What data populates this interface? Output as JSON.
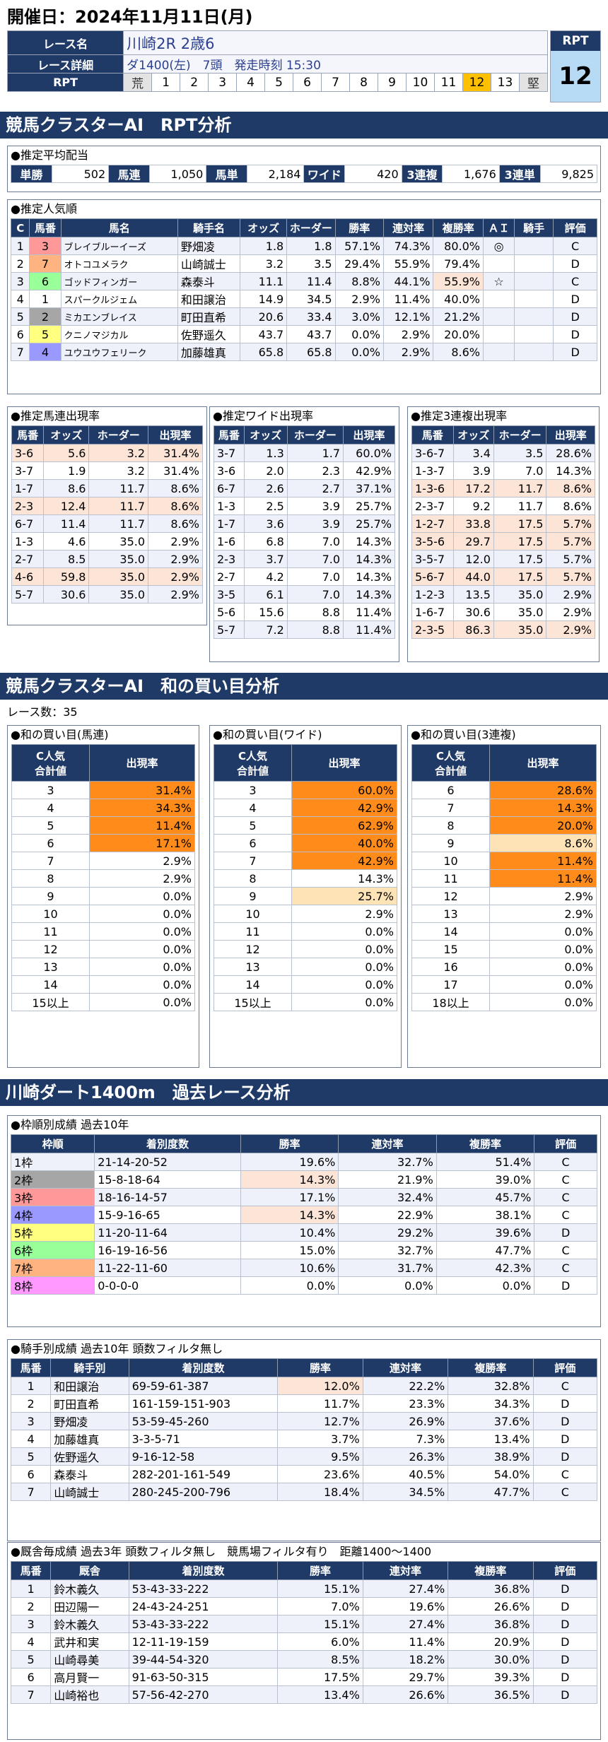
{
  "date_line": "開催日：2024年11月11日(月)",
  "header": {
    "race_name_label": "レース名",
    "race_name": "川崎2R 2歳6",
    "detail_label": "レース詳細",
    "detail": "ダ1400(左)　7頭　発走時刻 15:30",
    "rpt_label": "RPT",
    "rpt_scale": [
      "荒",
      "1",
      "2",
      "3",
      "4",
      "5",
      "6",
      "7",
      "8",
      "9",
      "10",
      "11",
      "12",
      "13",
      "堅"
    ],
    "rpt_selected": "12",
    "rpt_box_label": "RPT",
    "rpt_value": "12"
  },
  "band1": "競馬クラスターAI　RPT分析",
  "payout": {
    "title": "●推定平均配当",
    "items": [
      {
        "k": "単勝",
        "v": "502"
      },
      {
        "k": "馬連",
        "v": "1,050"
      },
      {
        "k": "馬単",
        "v": "2,184"
      },
      {
        "k": "ワイド",
        "v": "420"
      },
      {
        "k": "3連複",
        "v": "1,676"
      },
      {
        "k": "3連単",
        "v": "9,825"
      }
    ]
  },
  "pop": {
    "title": "●推定人気順",
    "headers": [
      "C",
      "馬番",
      "馬名",
      "騎手名",
      "オッズ",
      "ホーダー",
      "勝率",
      "連対率",
      "複勝率",
      "ＡＩ",
      "騎手",
      "評価"
    ],
    "rows": [
      [
        "1",
        "3",
        "ブレイブルーイーズ",
        "野畑凌",
        "1.8",
        "1.8",
        "57.1%",
        "74.3%",
        "80.0%",
        "◎",
        "",
        "C"
      ],
      [
        "2",
        "7",
        "オトコユメラク",
        "山崎誠士",
        "3.2",
        "3.5",
        "29.4%",
        "55.9%",
        "79.4%",
        "",
        "",
        "D"
      ],
      [
        "3",
        "6",
        "ゴッドフィンガー",
        "森泰斗",
        "11.1",
        "11.4",
        "8.8%",
        "44.1%",
        "55.9%",
        "☆",
        "",
        "C"
      ],
      [
        "4",
        "1",
        "スパークルジェム",
        "和田譲治",
        "14.9",
        "34.5",
        "2.9%",
        "11.4%",
        "40.0%",
        "",
        "",
        "D"
      ],
      [
        "5",
        "2",
        "ミカエンブレイス",
        "町田直希",
        "20.6",
        "33.4",
        "3.0%",
        "12.1%",
        "21.2%",
        "",
        "",
        "D"
      ],
      [
        "6",
        "5",
        "クニノマジカル",
        "佐野遥久",
        "43.7",
        "43.7",
        "0.0%",
        "2.9%",
        "20.0%",
        "",
        "",
        "D"
      ],
      [
        "7",
        "4",
        "ユウユウフェリーク",
        "加藤雄真",
        "65.8",
        "65.8",
        "0.0%",
        "2.9%",
        "8.6%",
        "",
        "",
        "D"
      ]
    ]
  },
  "quin": {
    "title": "●推定馬連出現率",
    "headers": [
      "馬番",
      "オッズ",
      "ホーダー",
      "出現率"
    ],
    "rows": [
      [
        "3-6",
        "5.6",
        "3.2",
        "31.4%"
      ],
      [
        "3-7",
        "1.9",
        "3.2",
        "31.4%"
      ],
      [
        "1-7",
        "8.6",
        "11.7",
        "8.6%"
      ],
      [
        "2-3",
        "12.4",
        "11.7",
        "8.6%"
      ],
      [
        "6-7",
        "11.4",
        "11.7",
        "8.6%"
      ],
      [
        "1-3",
        "4.6",
        "35.0",
        "2.9%"
      ],
      [
        "2-7",
        "8.5",
        "35.0",
        "2.9%"
      ],
      [
        "4-6",
        "59.8",
        "35.0",
        "2.9%"
      ],
      [
        "5-7",
        "30.6",
        "35.0",
        "2.9%"
      ]
    ]
  },
  "wide": {
    "title": "●推定ワイド出現率",
    "headers": [
      "馬番",
      "オッズ",
      "ホーダー",
      "出現率"
    ],
    "rows": [
      [
        "3-7",
        "1.3",
        "1.7",
        "60.0%"
      ],
      [
        "3-6",
        "2.0",
        "2.3",
        "42.9%"
      ],
      [
        "6-7",
        "2.6",
        "2.7",
        "37.1%"
      ],
      [
        "1-3",
        "2.5",
        "3.9",
        "25.7%"
      ],
      [
        "1-7",
        "3.6",
        "3.9",
        "25.7%"
      ],
      [
        "1-6",
        "6.8",
        "7.0",
        "14.3%"
      ],
      [
        "2-3",
        "3.7",
        "7.0",
        "14.3%"
      ],
      [
        "2-7",
        "4.2",
        "7.0",
        "14.3%"
      ],
      [
        "3-5",
        "6.1",
        "7.0",
        "14.3%"
      ],
      [
        "5-6",
        "15.6",
        "8.8",
        "11.4%"
      ],
      [
        "5-7",
        "7.2",
        "8.8",
        "11.4%"
      ]
    ]
  },
  "trio": {
    "title": "●推定3連複出現率",
    "headers": [
      "馬番",
      "オッズ",
      "ホーダー",
      "出現率"
    ],
    "rows": [
      [
        "3-6-7",
        "3.4",
        "3.5",
        "28.6%"
      ],
      [
        "1-3-7",
        "3.9",
        "7.0",
        "14.3%"
      ],
      [
        "1-3-6",
        "17.2",
        "11.7",
        "8.6%"
      ],
      [
        "2-3-7",
        "9.2",
        "11.7",
        "8.6%"
      ],
      [
        "1-2-7",
        "33.8",
        "17.5",
        "5.7%"
      ],
      [
        "3-5-6",
        "29.7",
        "17.5",
        "5.7%"
      ],
      [
        "3-5-7",
        "12.0",
        "17.5",
        "5.7%"
      ],
      [
        "5-6-7",
        "44.0",
        "17.5",
        "5.7%"
      ],
      [
        "1-2-3",
        "13.5",
        "35.0",
        "2.9%"
      ],
      [
        "1-6-7",
        "30.6",
        "35.0",
        "2.9%"
      ],
      [
        "2-3-5",
        "86.3",
        "35.0",
        "2.9%"
      ]
    ]
  },
  "band2": "競馬クラスターAI　和の買い目分析",
  "race_count": "レース数：35",
  "sum_quin": {
    "title": "●和の買い目(馬連)",
    "h1": "C人気\n合計値",
    "h2": "出現率",
    "rows": [
      [
        "3",
        "31.4%"
      ],
      [
        "4",
        "34.3%"
      ],
      [
        "5",
        "11.4%"
      ],
      [
        "6",
        "17.1%"
      ],
      [
        "7",
        "2.9%"
      ],
      [
        "8",
        "2.9%"
      ],
      [
        "9",
        "0.0%"
      ],
      [
        "10",
        "0.0%"
      ],
      [
        "11",
        "0.0%"
      ],
      [
        "12",
        "0.0%"
      ],
      [
        "13",
        "0.0%"
      ],
      [
        "14",
        "0.0%"
      ],
      [
        "15以上",
        "0.0%"
      ]
    ]
  },
  "sum_wide": {
    "title": "●和の買い目(ワイド)",
    "h1": "C人気\n合計値",
    "h2": "出現率",
    "rows": [
      [
        "3",
        "60.0%"
      ],
      [
        "4",
        "42.9%"
      ],
      [
        "5",
        "62.9%"
      ],
      [
        "6",
        "40.0%"
      ],
      [
        "7",
        "42.9%"
      ],
      [
        "8",
        "14.3%"
      ],
      [
        "9",
        "25.7%"
      ],
      [
        "10",
        "2.9%"
      ],
      [
        "11",
        "0.0%"
      ],
      [
        "12",
        "0.0%"
      ],
      [
        "13",
        "0.0%"
      ],
      [
        "14",
        "0.0%"
      ],
      [
        "15以上",
        "0.0%"
      ]
    ]
  },
  "sum_trio": {
    "title": "●和の買い目(3連複)",
    "h1": "C人気\n合計値",
    "h2": "出現率",
    "rows": [
      [
        "6",
        "28.6%"
      ],
      [
        "7",
        "14.3%"
      ],
      [
        "8",
        "20.0%"
      ],
      [
        "9",
        "8.6%"
      ],
      [
        "10",
        "11.4%"
      ],
      [
        "11",
        "11.4%"
      ],
      [
        "12",
        "2.9%"
      ],
      [
        "13",
        "2.9%"
      ],
      [
        "14",
        "0.0%"
      ],
      [
        "15",
        "0.0%"
      ],
      [
        "16",
        "0.0%"
      ],
      [
        "17",
        "0.0%"
      ],
      [
        "18以上",
        "0.0%"
      ]
    ]
  },
  "band3": "川崎ダート1400m　過去レース分析",
  "waku": {
    "title": "●枠順別成績 過去10年",
    "headers": [
      "枠順",
      "着別度数",
      "勝率",
      "連対率",
      "複勝率",
      "評価"
    ],
    "rows": [
      [
        "1枠",
        "21-14-20-52",
        "19.6%",
        "32.7%",
        "51.4%",
        "C"
      ],
      [
        "2枠",
        "15-8-18-64",
        "14.3%",
        "21.9%",
        "39.0%",
        "C"
      ],
      [
        "3枠",
        "18-16-14-57",
        "17.1%",
        "32.4%",
        "45.7%",
        "C"
      ],
      [
        "4枠",
        "15-9-16-65",
        "14.3%",
        "22.9%",
        "38.1%",
        "C"
      ],
      [
        "5枠",
        "11-20-11-64",
        "10.4%",
        "29.2%",
        "39.6%",
        "D"
      ],
      [
        "6枠",
        "16-19-16-56",
        "15.0%",
        "32.7%",
        "47.7%",
        "C"
      ],
      [
        "7枠",
        "11-22-11-60",
        "10.6%",
        "31.7%",
        "42.3%",
        "C"
      ],
      [
        "8枠",
        "0-0-0-0",
        "0.0%",
        "0.0%",
        "0.0%",
        "D"
      ]
    ]
  },
  "jockey": {
    "title": "●騎手別成績 過去10年 頭数フィルタ無し",
    "headers": [
      "馬番",
      "騎手別",
      "着別度数",
      "勝率",
      "連対率",
      "複勝率",
      "評価"
    ],
    "rows": [
      [
        "1",
        "和田譲治",
        "69-59-61-387",
        "12.0%",
        "22.2%",
        "32.8%",
        "C"
      ],
      [
        "2",
        "町田直希",
        "161-159-151-903",
        "11.7%",
        "23.3%",
        "34.3%",
        "D"
      ],
      [
        "3",
        "野畑凌",
        "53-59-45-260",
        "12.7%",
        "26.9%",
        "37.6%",
        "D"
      ],
      [
        "4",
        "加藤雄真",
        "3-3-5-71",
        "3.7%",
        "7.3%",
        "13.4%",
        "D"
      ],
      [
        "5",
        "佐野遥久",
        "9-16-12-58",
        "9.5%",
        "26.3%",
        "38.9%",
        "D"
      ],
      [
        "6",
        "森泰斗",
        "282-201-161-549",
        "23.6%",
        "40.5%",
        "54.0%",
        "C"
      ],
      [
        "7",
        "山崎誠士",
        "280-245-200-796",
        "18.4%",
        "34.5%",
        "47.7%",
        "C"
      ]
    ]
  },
  "stable": {
    "title": "●厩舎毎成績 過去3年 頭数フィルタ無し　競馬場フィルタ有り　距離1400～1400",
    "headers": [
      "馬番",
      "厩舎",
      "着別度数",
      "勝率",
      "連対率",
      "複勝率",
      "評価"
    ],
    "rows": [
      [
        "1",
        "鈴木義久",
        "53-43-33-222",
        "15.1%",
        "27.4%",
        "36.8%",
        "D"
      ],
      [
        "2",
        "田辺陽一",
        "24-43-24-251",
        "7.0%",
        "19.6%",
        "26.6%",
        "D"
      ],
      [
        "3",
        "鈴木義久",
        "53-43-33-222",
        "15.1%",
        "27.4%",
        "36.8%",
        "D"
      ],
      [
        "4",
        "武井和実",
        "12-11-19-159",
        "6.0%",
        "11.4%",
        "20.9%",
        "D"
      ],
      [
        "5",
        "山崎尋美",
        "39-44-54-320",
        "8.5%",
        "18.2%",
        "30.0%",
        "D"
      ],
      [
        "6",
        "高月賢一",
        "91-63-50-315",
        "17.5%",
        "29.7%",
        "39.3%",
        "D"
      ],
      [
        "7",
        "山崎裕也",
        "57-56-42-270",
        "13.4%",
        "26.6%",
        "36.5%",
        "D"
      ]
    ]
  }
}
